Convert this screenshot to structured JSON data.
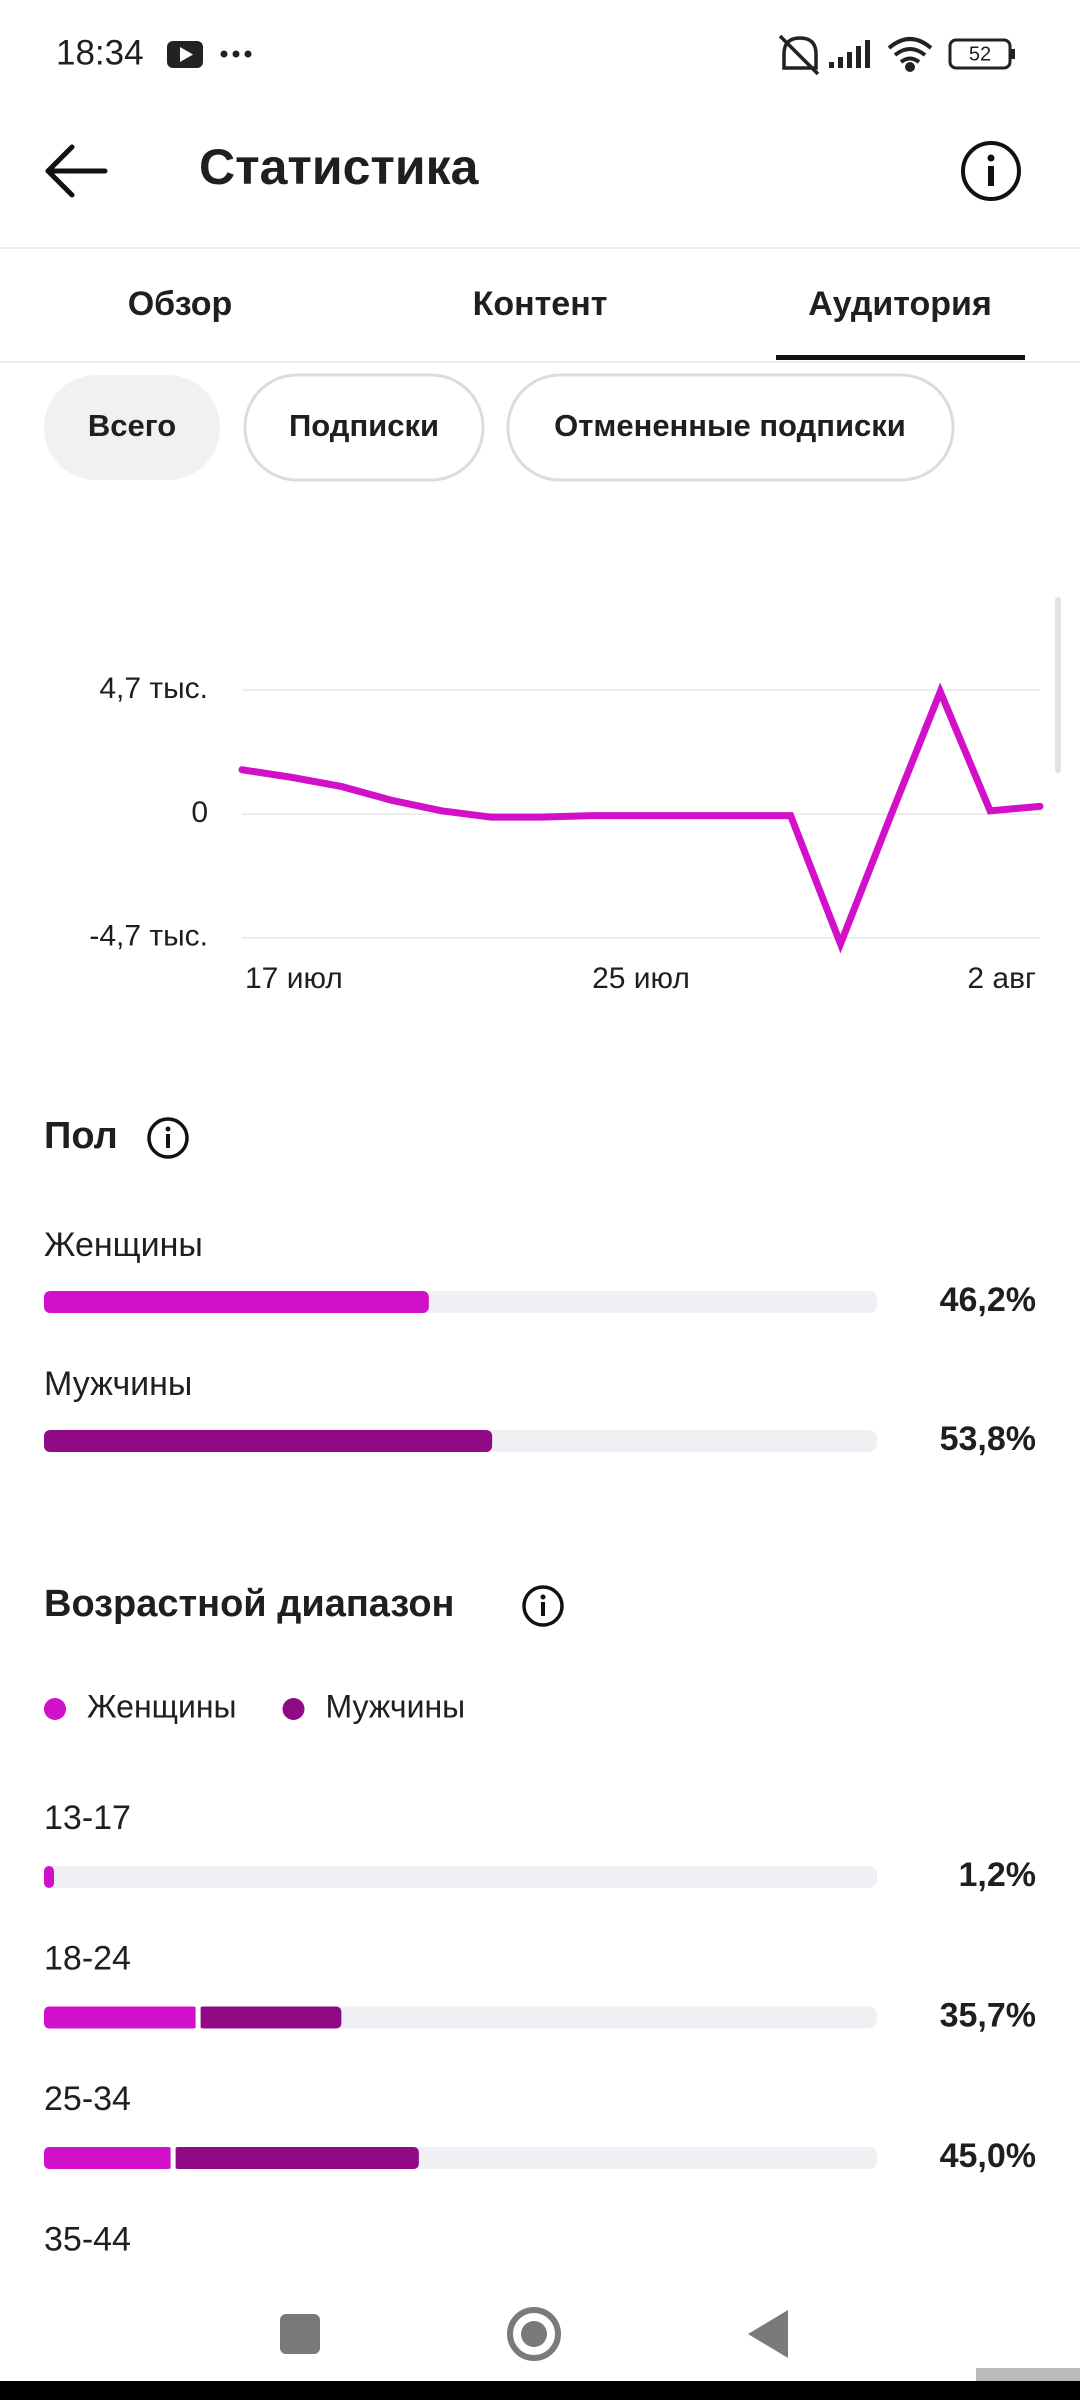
{
  "status_bar": {
    "time": "18:34",
    "battery": "52"
  },
  "header": {
    "title": "Статистика"
  },
  "tabs": [
    "Обзор",
    "Контент",
    "Аудитория"
  ],
  "filters": [
    "Всего",
    "Подписки",
    "Отмененные подписки"
  ],
  "chart_data": [
    {
      "type": "line",
      "categories": [
        "17 июл",
        null,
        null,
        null,
        null,
        null,
        null,
        null,
        "25 июл",
        null,
        null,
        null,
        null,
        null,
        null,
        null,
        "2 авг"
      ],
      "series": [
        {
          "color": "#d20fc9",
          "values": [
            1680,
            1390,
            1040,
            520,
            120,
            -120,
            -120,
            -60,
            -60,
            -60,
            -60,
            -60,
            -4930,
            -100,
            4640,
            120,
            290
          ]
        }
      ],
      "ylim": [
        -5200,
        5200
      ],
      "yticks": [
        {
          "value": 4700,
          "label": "4,7 тыс."
        },
        0,
        {
          "value": -4700,
          "label": "-4,7 тыс."
        }
      ],
      "grid": true
    },
    {
      "type": "hbar",
      "title": "Пол",
      "categories": [
        "Женщины",
        "Мужчины"
      ],
      "values": [
        46.2,
        53.8
      ],
      "value_labels": [
        "46,2%",
        "53,8%"
      ],
      "colors": [
        "#d20fc9",
        "#8f0a84"
      ],
      "xlim": [
        0,
        100
      ]
    },
    {
      "type": "stacked-hbar",
      "title": "Возрастной диапазон",
      "categories": [
        "13-17",
        "18-24",
        "25-34",
        "35-44"
      ],
      "series": [
        {
          "name": "Женщины",
          "color": "#d20fc9",
          "values": [
            1.2,
            18.5,
            15.5,
            null
          ]
        },
        {
          "name": "Мужчины",
          "color": "#8f0a84",
          "values": [
            0,
            17.2,
            29.5,
            null
          ]
        }
      ],
      "totals": [
        1.2,
        35.7,
        45.0,
        null
      ],
      "total_labels": [
        "1,2%",
        "35,7%",
        "45,0%",
        null
      ],
      "xlim": [
        0,
        100
      ]
    }
  ]
}
